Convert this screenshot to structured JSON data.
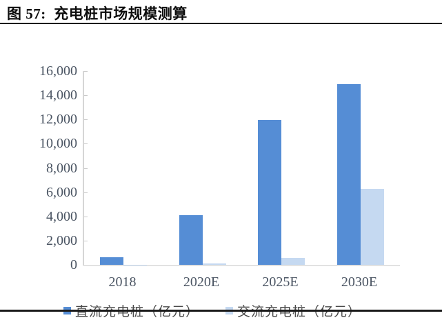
{
  "header": {
    "title": "图 57:  充电桩市场规模测算"
  },
  "colors": {
    "dc_bar": "#558DD5",
    "ac_bar": "#C5D9F1",
    "axis_line": "#D6D6D6",
    "tick_mark": "#C9C9C9",
    "label_text": "#4B5563",
    "rule": "#1A1A1A"
  },
  "chart_data": {
    "type": "bar",
    "title": "图 57: 充电桩市场规模测算",
    "categories": [
      "2018",
      "2020E",
      "2025E",
      "2030E"
    ],
    "series": [
      {
        "name": "直流充电桩（亿元）",
        "color": "#558DD5",
        "values": [
          640,
          4100,
          11950,
          14900
        ]
      },
      {
        "name": "交流充电桩（亿元）",
        "color": "#C5D9F1",
        "values": [
          20,
          100,
          550,
          6260
        ]
      }
    ],
    "xlabel": "",
    "ylabel": "",
    "ylim": [
      0,
      16000
    ],
    "ytick_step": 2000,
    "ytick_labels": [
      "0",
      "2,000",
      "4,000",
      "6,000",
      "8,000",
      "10,000",
      "12,000",
      "14,000",
      "16,000"
    ],
    "grid": false,
    "legend_position": "bottom"
  }
}
